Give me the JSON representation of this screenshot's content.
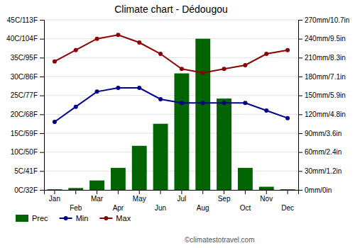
{
  "chart_data": {
    "type": "bar",
    "title": "Climate chart - Dédougou",
    "categories": [
      "Jan",
      "Feb",
      "Mar",
      "Apr",
      "May",
      "Jun",
      "Jul",
      "Aug",
      "Sep",
      "Oct",
      "Nov",
      "Dec"
    ],
    "series": [
      {
        "name": "Prec",
        "type": "bar",
        "axis": "y2",
        "color": "#006400",
        "values": [
          1,
          3,
          15,
          35,
          70,
          105,
          185,
          240,
          145,
          35,
          5,
          1
        ]
      },
      {
        "name": "Min",
        "type": "line",
        "color": "#00008B",
        "marker": "circle",
        "values": [
          18,
          22,
          26,
          27,
          27,
          24,
          23,
          23,
          23,
          23,
          21,
          19
        ]
      },
      {
        "name": "Max",
        "type": "line",
        "color": "#8B0000",
        "marker": "circle",
        "values": [
          34,
          37,
          40,
          41,
          39,
          36,
          32,
          31,
          32,
          33,
          36,
          37
        ]
      }
    ],
    "ylim": [
      0,
      45
    ],
    "yticks": [
      {
        "value": 0,
        "label": "0C/32F"
      },
      {
        "value": 5,
        "label": "5C/41F"
      },
      {
        "value": 10,
        "label": "10C/50F"
      },
      {
        "value": 15,
        "label": "15C/59F"
      },
      {
        "value": 20,
        "label": "20C/68F"
      },
      {
        "value": 25,
        "label": "25C/77F"
      },
      {
        "value": 30,
        "label": "30C/86F"
      },
      {
        "value": 35,
        "label": "35C/95F"
      },
      {
        "value": 40,
        "label": "40C/104F"
      },
      {
        "value": 45,
        "label": "45C/113F"
      }
    ],
    "y2lim": [
      0,
      270
    ],
    "y2ticks": [
      {
        "value": 0,
        "label": "0mm/0in"
      },
      {
        "value": 30,
        "label": "30mm/1.2in"
      },
      {
        "value": 60,
        "label": "60mm/2.4in"
      },
      {
        "value": 90,
        "label": "90mm/3.6in"
      },
      {
        "value": 120,
        "label": "120mm/4.8in"
      },
      {
        "value": 150,
        "label": "150mm/5.9in"
      },
      {
        "value": 180,
        "label": "180mm/7.1in"
      },
      {
        "value": 210,
        "label": "210mm/8.3in"
      },
      {
        "value": 240,
        "label": "240mm/9.5in"
      },
      {
        "value": 270,
        "label": "270mm/10.7in"
      }
    ],
    "grid": true,
    "legend": "bottom",
    "annotations": [
      "©climatestotravel.com"
    ]
  }
}
